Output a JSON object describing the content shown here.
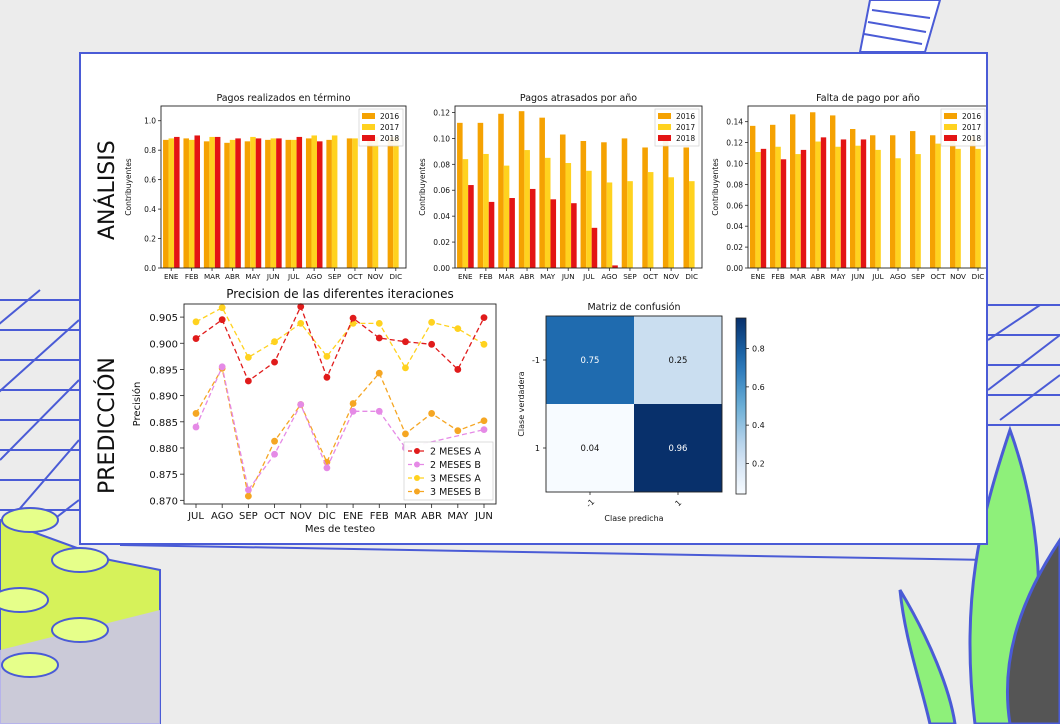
{
  "slide": {
    "section_analysis": "ANÁLISIS",
    "section_prediction": "PREDICCIÓN"
  },
  "colors": {
    "y2016": "#f5a202",
    "y2017": "#ffd21f",
    "y2018": "#e31414",
    "mesesA2": "#e01b1b",
    "mesesB2": "#e58ae6",
    "mesesA3": "#ffd21f",
    "mesesB3": "#f5a623",
    "decor_blue": "#4a5bd6",
    "decor_lime": "#d6f25a"
  },
  "chart_data": [
    {
      "type": "bar",
      "title": "Pagos realizados en término",
      "ylabel": "Contribuyentes",
      "categories": [
        "ENE",
        "FEB",
        "MAR",
        "ABR",
        "MAY",
        "JUN",
        "JUL",
        "AGO",
        "SEP",
        "OCT",
        "NOV",
        "DIC"
      ],
      "yticks": [
        "0.0",
        "0.2",
        "0.4",
        "0.6",
        "0.8",
        "1.0"
      ],
      "ylim": [
        0,
        1.1
      ],
      "legend_position": "top-right",
      "series": [
        {
          "name": "2016",
          "values": [
            0.87,
            0.88,
            0.86,
            0.85,
            0.86,
            0.87,
            0.87,
            0.88,
            0.87,
            0.88,
            0.88,
            0.89
          ]
        },
        {
          "name": "2017",
          "values": [
            0.88,
            0.87,
            0.89,
            0.87,
            0.89,
            0.88,
            0.87,
            0.9,
            0.9,
            0.88,
            0.89,
            0.89
          ]
        },
        {
          "name": "2018",
          "values": [
            0.89,
            0.9,
            0.89,
            0.88,
            0.88,
            0.88,
            0.89,
            0.86,
            null,
            null,
            null,
            null
          ]
        }
      ]
    },
    {
      "type": "bar",
      "title": "Pagos atrasados por año",
      "ylabel": "Contribuyentes",
      "categories": [
        "ENE",
        "FEB",
        "MAR",
        "ABR",
        "MAY",
        "JUN",
        "JUL",
        "AGO",
        "SEP",
        "OCT",
        "NOV",
        "DIC"
      ],
      "yticks": [
        "0.00",
        "0.02",
        "0.04",
        "0.06",
        "0.08",
        "0.10",
        "0.12"
      ],
      "ylim": [
        0,
        0.125
      ],
      "legend_position": "top-right",
      "series": [
        {
          "name": "2016",
          "values": [
            0.112,
            0.112,
            0.119,
            0.121,
            0.116,
            0.103,
            0.098,
            0.097,
            0.1,
            0.093,
            0.098,
            0.093
          ]
        },
        {
          "name": "2017",
          "values": [
            0.084,
            0.088,
            0.079,
            0.091,
            0.085,
            0.081,
            0.075,
            0.066,
            0.067,
            0.074,
            0.07,
            0.067
          ]
        },
        {
          "name": "2018",
          "values": [
            0.064,
            0.051,
            0.054,
            0.061,
            0.053,
            0.05,
            0.031,
            0.002,
            null,
            null,
            null,
            null
          ]
        }
      ]
    },
    {
      "type": "bar",
      "title": "Falta de pago por año",
      "ylabel": "Contribuyentes",
      "categories": [
        "ENE",
        "FEB",
        "MAR",
        "ABR",
        "MAY",
        "JUN",
        "JUL",
        "AGO",
        "SEP",
        "OCT",
        "NOV",
        "DIC"
      ],
      "yticks": [
        "0.00",
        "0.02",
        "0.04",
        "0.06",
        "0.08",
        "0.10",
        "0.12",
        "0.14"
      ],
      "ylim": [
        0,
        0.155
      ],
      "legend_position": "top-right",
      "series": [
        {
          "name": "2016",
          "values": [
            0.136,
            0.137,
            0.147,
            0.149,
            0.146,
            0.133,
            0.127,
            0.127,
            0.131,
            0.127,
            0.127,
            0.126
          ]
        },
        {
          "name": "2017",
          "values": [
            0.111,
            0.116,
            0.109,
            0.121,
            0.116,
            0.117,
            0.113,
            0.105,
            0.109,
            0.119,
            0.114,
            0.114
          ]
        },
        {
          "name": "2018",
          "values": [
            0.114,
            0.104,
            0.113,
            0.125,
            0.123,
            0.123,
            null,
            null,
            null,
            null,
            null,
            null
          ]
        }
      ]
    },
    {
      "type": "line",
      "title": "Precision de las diferentes iteraciones",
      "xlabel": "Mes de testeo",
      "ylabel": "Precisión",
      "categories": [
        "JUL",
        "AGO",
        "SEP",
        "OCT",
        "NOV",
        "DIC",
        "ENE",
        "FEB",
        "MAR",
        "ABR",
        "MAY",
        "JUN"
      ],
      "yticks": [
        "0.870",
        "0.875",
        "0.880",
        "0.885",
        "0.890",
        "0.895",
        "0.900",
        "0.905"
      ],
      "ylim": [
        0.8693,
        0.9075
      ],
      "legend_position": "lower-right",
      "series": [
        {
          "name": "2 MESES A",
          "values": [
            0.9009,
            0.9045,
            0.8928,
            0.8964,
            0.907,
            0.8935,
            0.9048,
            0.901,
            0.9003,
            0.8998,
            0.895,
            0.9049
          ]
        },
        {
          "name": "2 MESES B",
          "values": [
            0.884,
            0.8955,
            0.872,
            0.8788,
            0.8883,
            0.8762,
            0.887,
            0.887,
            0.88,
            null,
            null,
            0.8835
          ]
        },
        {
          "name": "3 MESES A",
          "values": [
            0.9041,
            0.9068,
            0.8973,
            0.9003,
            0.9038,
            0.8975,
            0.9038,
            0.9038,
            0.8953,
            0.904,
            0.9028,
            0.8998
          ]
        },
        {
          "name": "3 MESES B",
          "values": [
            0.8866,
            0.8952,
            0.8708,
            0.8813,
            0.8883,
            0.8773,
            0.8885,
            0.8943,
            0.8827,
            0.8866,
            0.8833,
            0.8852
          ]
        }
      ]
    },
    {
      "type": "heatmap",
      "title": "Matriz de confusión",
      "xlabel": "Clase predicha",
      "ylabel": "Clase verdadera",
      "row_labels": [
        "-1",
        "1"
      ],
      "col_labels": [
        "-1",
        "1"
      ],
      "values": [
        [
          0.75,
          0.25
        ],
        [
          0.04,
          0.96
        ]
      ],
      "value_labels": [
        [
          "0.75",
          "0.25"
        ],
        [
          "0.04",
          "0.96"
        ]
      ],
      "colorbar_ticks": [
        "0.2",
        "0.4",
        "0.6",
        "0.8"
      ],
      "colorbar_range": [
        0.04,
        0.96
      ],
      "colormap": "Blues"
    }
  ]
}
